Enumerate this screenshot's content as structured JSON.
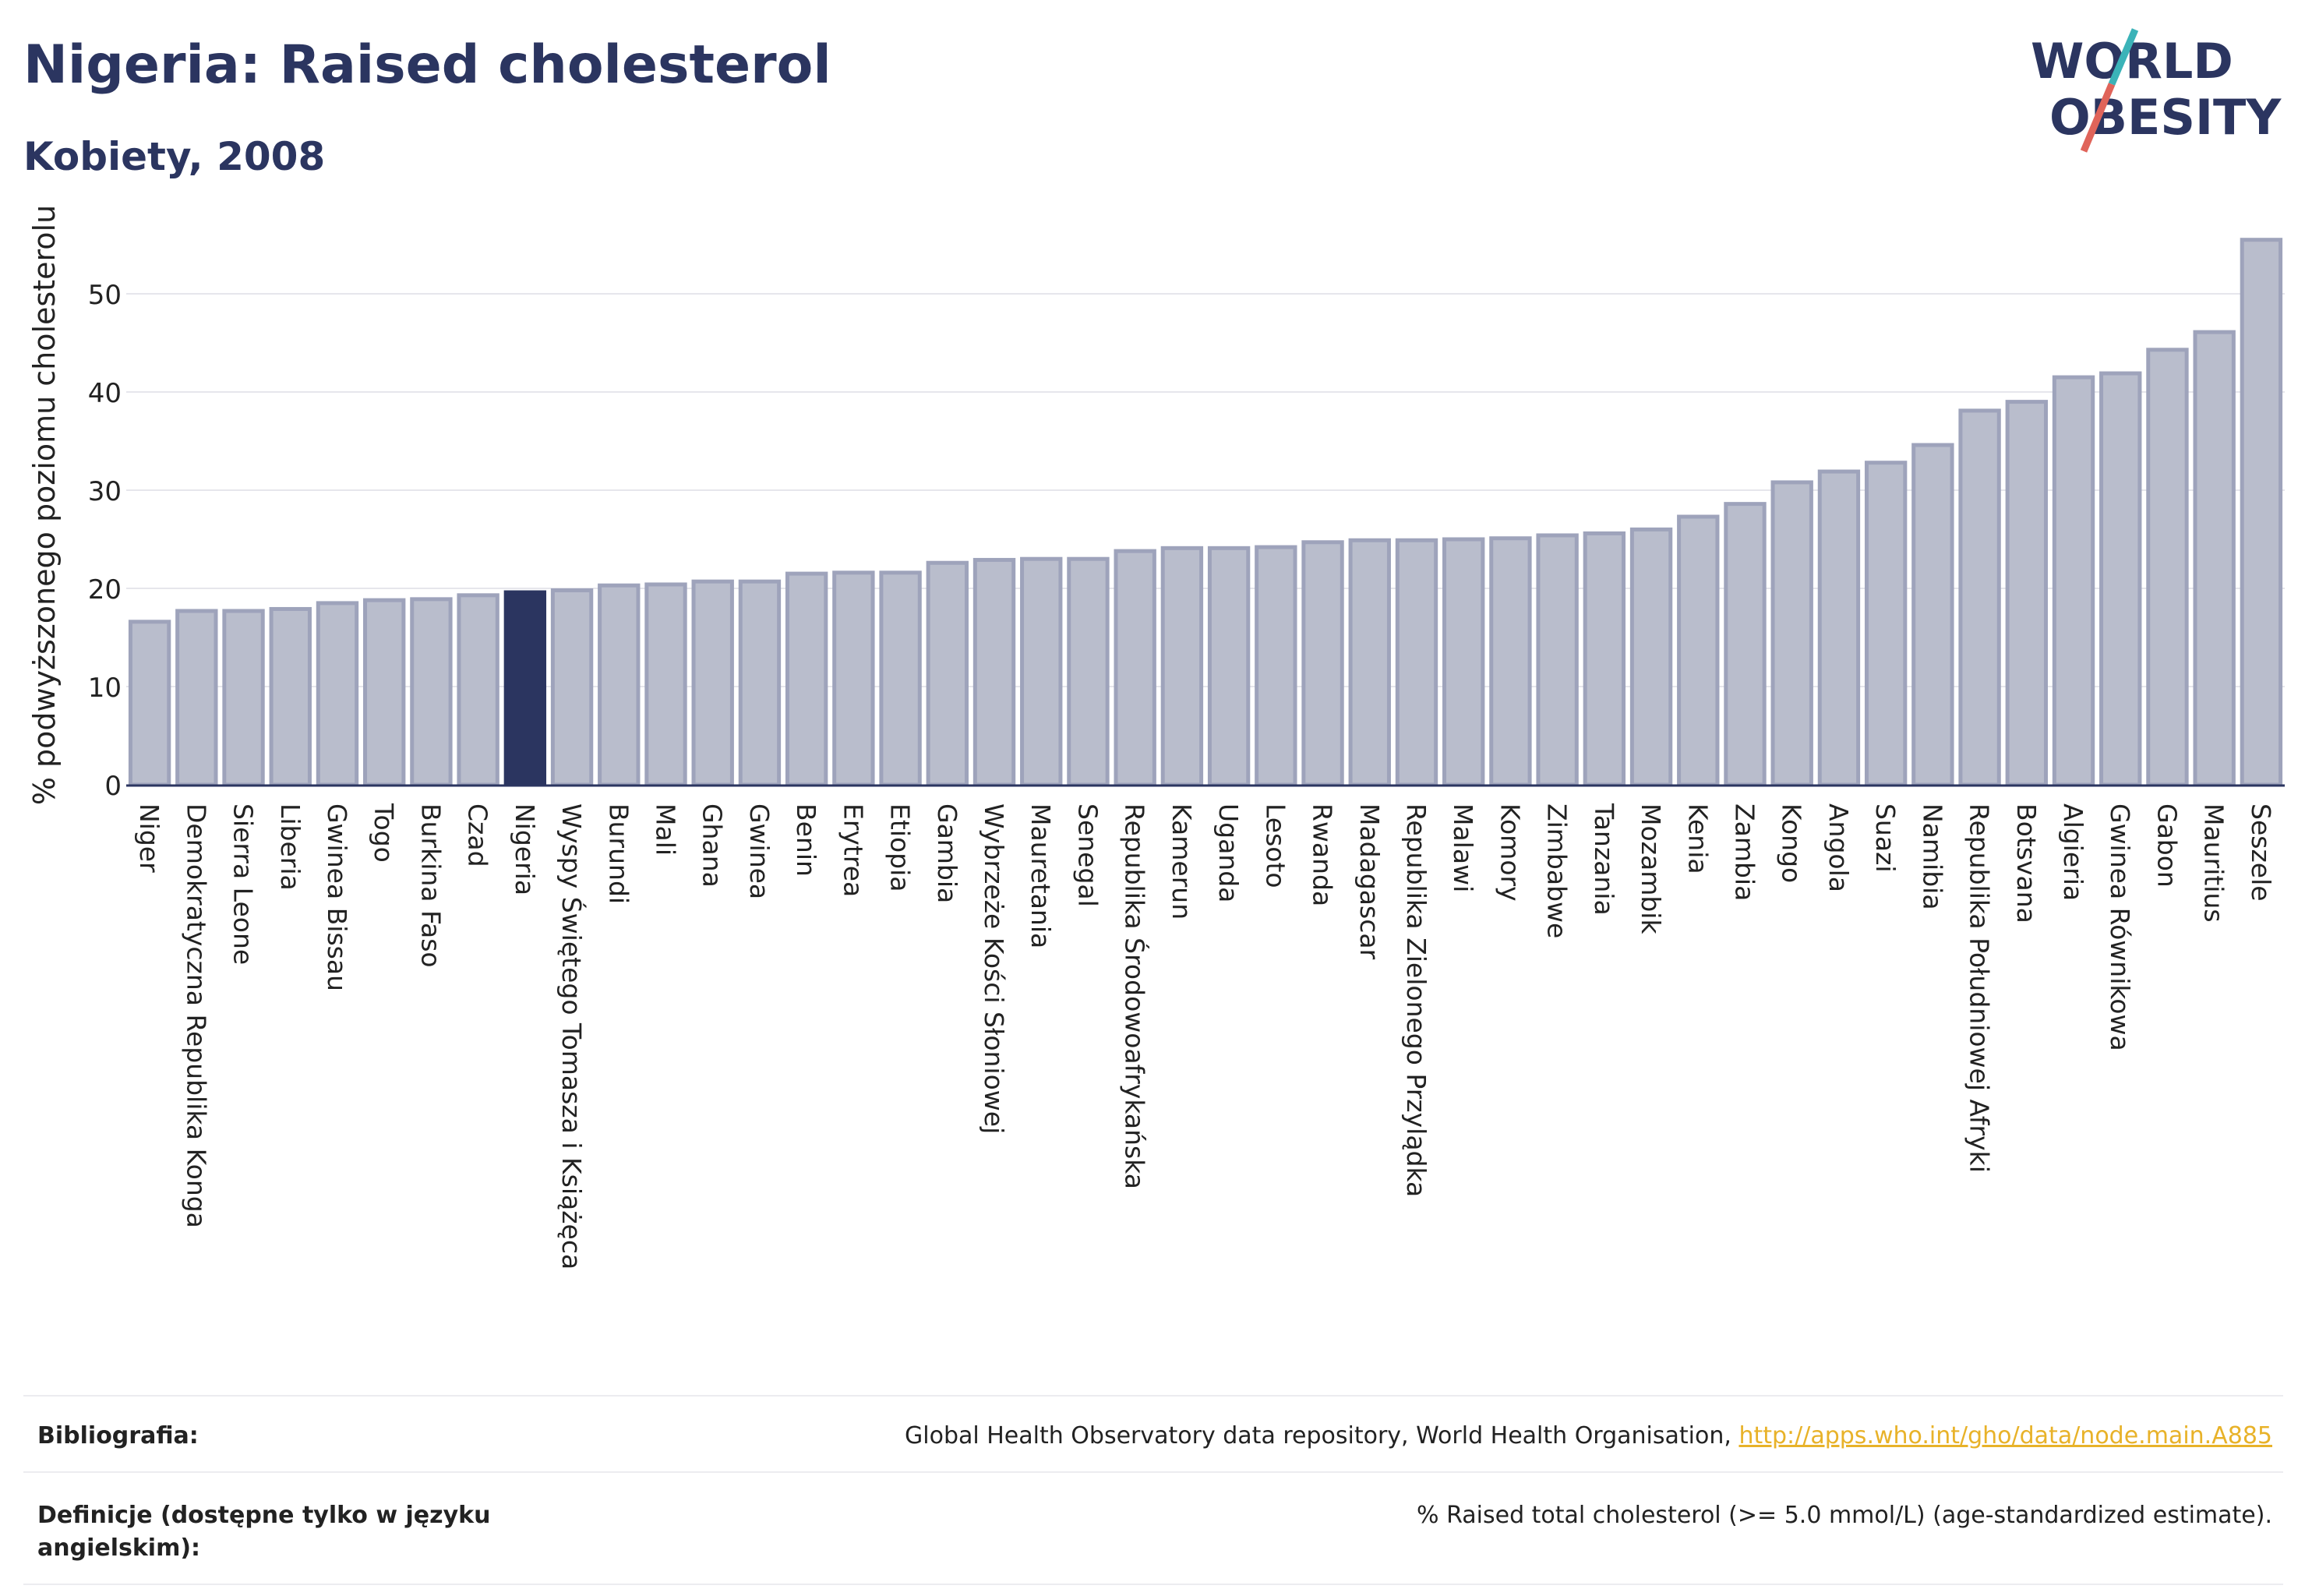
{
  "header": {
    "title": "Nigeria: Raised cholesterol",
    "subtitle": "Kobiety, 2008"
  },
  "logo": {
    "line1": "WORLD",
    "line2": "OBESITY",
    "colors": {
      "text": "#2b3560",
      "slash_teal": "#3bb3b8",
      "slash_red": "#e0645a"
    }
  },
  "colors": {
    "bar": "#b9bdcc",
    "bar_border": "#9ea3bb",
    "highlight": "#2b3560",
    "axis_text": "#222222",
    "grid": "#e6e6ec"
  },
  "chart_data": {
    "type": "bar",
    "title": "Nigeria: Raised cholesterol",
    "subtitle": "Kobiety, 2008",
    "xlabel": "",
    "ylabel": "% podwyższonego poziomu cholesterolu",
    "ylim": [
      0,
      57
    ],
    "yticks": [
      0,
      10,
      20,
      30,
      40,
      50
    ],
    "grid": true,
    "highlight": "Nigeria",
    "categories": [
      "Niger",
      "Demokratyczna Republika Konga",
      "Sierra Leone",
      "Liberia",
      "Gwinea Bissau",
      "Togo",
      "Burkina Faso",
      "Czad",
      "Nigeria",
      "Wyspy Świętego Tomasza i Książęca",
      "Burundi",
      "Mali",
      "Ghana",
      "Gwinea",
      "Benin",
      "Erytrea",
      "Etiopia",
      "Gambia",
      "Wybrzeże Kości Słoniowej",
      "Mauretania",
      "Senegal",
      "Republika Środowoafrykańska",
      "Kamerun",
      "Uganda",
      "Lesoto",
      "Rwanda",
      "Madagascar",
      "Republika Zielonego Przylądka",
      "Malawi",
      "Komory",
      "Zimbabwe",
      "Tanzania",
      "Mozambik",
      "Kenia",
      "Zambia",
      "Kongo",
      "Angola",
      "Suazi",
      "Namibia",
      "Republika Południowej Afryki",
      "Botsvana",
      "Algieria",
      "Gwinea Równikowa",
      "Gabon",
      "Mauritius",
      "Seszele"
    ],
    "values": [
      16.6,
      17.7,
      17.7,
      17.9,
      18.5,
      18.8,
      18.9,
      19.3,
      19.6,
      19.8,
      20.3,
      20.4,
      20.7,
      20.7,
      21.5,
      21.6,
      21.6,
      22.6,
      22.9,
      23.0,
      23.0,
      23.8,
      24.1,
      24.1,
      24.2,
      24.7,
      24.9,
      24.9,
      25.0,
      25.1,
      25.4,
      25.6,
      26.0,
      27.3,
      28.6,
      30.8,
      31.9,
      32.8,
      34.6,
      38.1,
      39.0,
      41.5,
      41.9,
      44.3,
      46.1,
      55.5
    ]
  },
  "footer": {
    "bibliography_label": "Bibliografia:",
    "bibliography_text": "Global Health Observatory data repository, World Health Organisation, ",
    "bibliography_link": "http://apps.who.int/gho/data/node.main.A885",
    "definition_label": "Definicje (dostępne tylko w języku angielskim):",
    "definition_text": "% Raised total cholesterol (>= 5.0 mmol/L) (age-standardized estimate)."
  }
}
